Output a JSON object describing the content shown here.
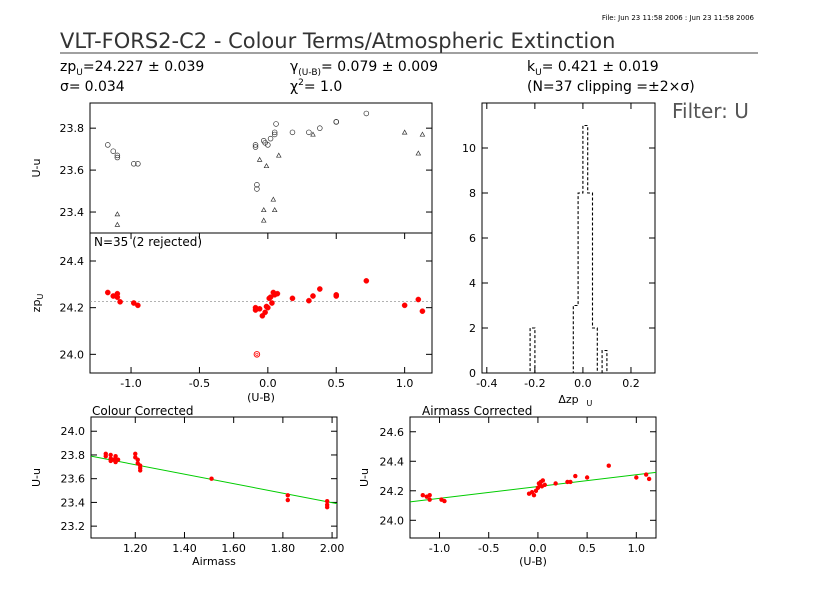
{
  "header": {
    "file_info": "File: Jun 23 11:58 2006 : Jun 23 11:58 2006",
    "title": "VLT-FORS2-C2 - Colour Terms/Atmospheric Extinction",
    "zp_label": "zp",
    "zp_sub": "U",
    "zp_value": "=24.227 ± 0.039",
    "sigma_label": "σ=",
    "sigma_value": "0.034",
    "gamma_label": "γ",
    "gamma_sub": "(U-B)",
    "gamma_value": "= 0.079 ± 0.009",
    "chi_label": "χ",
    "chi_sup": "2",
    "chi_value": "= 1.0",
    "k_label": "k",
    "k_sub": "U",
    "k_value": "= 0.421 ± 0.019",
    "clipping": "(N=37 clipping =±2×σ)",
    "filter": "Filter: U"
  },
  "colors": {
    "points": "#ff0000",
    "fit_line": "#00cc00",
    "axes": "#000000",
    "dotted": "#999999"
  },
  "chart_data": [
    {
      "id": "raw",
      "type": "scatter",
      "xlim": [
        -1.3,
        1.2
      ],
      "ylim": [
        23.3,
        23.92
      ],
      "ylabel": "U-u",
      "yticks": [
        23.4,
        23.6,
        23.8
      ],
      "series": [
        {
          "marker": "circle",
          "points": [
            [
              -1.17,
              23.72
            ],
            [
              -1.13,
              23.69
            ],
            [
              -1.1,
              23.67
            ],
            [
              -1.1,
              23.66
            ],
            [
              -0.98,
              23.63
            ],
            [
              -0.95,
              23.63
            ],
            [
              -0.09,
              23.72
            ],
            [
              -0.09,
              23.71
            ],
            [
              -0.08,
              23.53
            ],
            [
              -0.08,
              23.51
            ],
            [
              -0.03,
              23.74
            ],
            [
              -0.02,
              23.73
            ],
            [
              0.0,
              23.72
            ],
            [
              0.02,
              23.75
            ],
            [
              0.05,
              23.77
            ],
            [
              0.06,
              23.82
            ],
            [
              0.05,
              23.78
            ],
            [
              0.18,
              23.78
            ],
            [
              0.3,
              23.78
            ],
            [
              0.38,
              23.8
            ],
            [
              0.5,
              23.83
            ],
            [
              0.5,
              23.83
            ],
            [
              0.72,
              23.87
            ]
          ]
        },
        {
          "marker": "triangle",
          "points": [
            [
              -1.1,
              23.39
            ],
            [
              -1.1,
              23.34
            ],
            [
              -0.06,
              23.65
            ],
            [
              -0.03,
              23.41
            ],
            [
              -0.03,
              23.36
            ],
            [
              -0.01,
              23.62
            ],
            [
              0.04,
              23.46
            ],
            [
              0.05,
              23.41
            ],
            [
              0.08,
              23.67
            ],
            [
              0.33,
              23.77
            ],
            [
              1.0,
              23.78
            ],
            [
              1.1,
              23.68
            ],
            [
              1.13,
              23.77
            ]
          ]
        }
      ]
    },
    {
      "id": "zp",
      "type": "scatter",
      "annotation": "N=35 (2 rejected)",
      "xlim": [
        -1.3,
        1.2
      ],
      "ylim": [
        23.92,
        24.52
      ],
      "xlabel": "(U-B)",
      "ylabel": "zp",
      "ylabel_sub": "U",
      "xticks": [
        -1.0,
        -0.5,
        0.0,
        0.5,
        1.0
      ],
      "xticklabels": [
        "-1.0",
        "-0.5",
        "0.0",
        "0.5",
        "1.0"
      ],
      "yticks": [
        24.0,
        24.2,
        24.4
      ],
      "reference_line": 24.227,
      "points": [
        [
          -1.17,
          24.265
        ],
        [
          -1.13,
          24.25
        ],
        [
          -1.1,
          24.26
        ],
        [
          -1.1,
          24.245
        ],
        [
          -1.08,
          24.225
        ],
        [
          -0.98,
          24.22
        ],
        [
          -0.95,
          24.21
        ],
        [
          -0.09,
          24.19
        ],
        [
          -0.09,
          24.2
        ],
        [
          -0.06,
          24.195
        ],
        [
          -0.04,
          24.165
        ],
        [
          -0.02,
          24.18
        ],
        [
          -0.01,
          24.205
        ],
        [
          0.0,
          24.2
        ],
        [
          0.01,
          24.24
        ],
        [
          0.02,
          24.245
        ],
        [
          0.03,
          24.22
        ],
        [
          0.04,
          24.265
        ],
        [
          0.05,
          24.255
        ],
        [
          0.07,
          24.26
        ],
        [
          0.18,
          24.24
        ],
        [
          0.3,
          24.23
        ],
        [
          0.33,
          24.25
        ],
        [
          0.38,
          24.28
        ],
        [
          0.5,
          24.25
        ],
        [
          0.5,
          24.255
        ],
        [
          0.72,
          24.315
        ],
        [
          1.0,
          24.21
        ],
        [
          1.1,
          24.235
        ],
        [
          1.13,
          24.185
        ]
      ],
      "rejected": [
        [
          -0.08,
          24.0
        ]
      ]
    },
    {
      "id": "histogram",
      "type": "bar",
      "xlim": [
        -0.42,
        0.3
      ],
      "ylim": [
        0,
        12
      ],
      "xlabel": "Δzp",
      "xlabel_sub": "U",
      "xticks": [
        -0.4,
        -0.2,
        0.0,
        0.2
      ],
      "xticklabels": [
        "-0.4",
        "-0.2",
        "0.0",
        "0.2"
      ],
      "yticks": [
        0,
        2,
        4,
        6,
        8,
        10
      ],
      "bin_width": 0.02,
      "bins": [
        [
          -0.22,
          2
        ],
        [
          -0.04,
          3
        ],
        [
          -0.02,
          8
        ],
        [
          0.0,
          11
        ],
        [
          0.02,
          8
        ],
        [
          0.04,
          2
        ],
        [
          0.08,
          1
        ]
      ]
    },
    {
      "id": "colour-corrected",
      "type": "scatter",
      "title": "Colour Corrected",
      "xlim": [
        1.02,
        2.02
      ],
      "ylim": [
        23.1,
        24.12
      ],
      "xlabel": "Airmass",
      "ylabel": "U-u",
      "xticks": [
        1.2,
        1.4,
        1.6,
        1.8,
        2.0
      ],
      "xticklabels": [
        "1.20",
        "1.40",
        "1.60",
        "1.80",
        "2.00"
      ],
      "yticks": [
        23.2,
        23.4,
        23.6,
        23.8,
        24.0
      ],
      "fit_line": [
        [
          1.02,
          23.79
        ],
        [
          2.02,
          23.39
        ]
      ],
      "points": [
        [
          1.08,
          23.81
        ],
        [
          1.08,
          23.79
        ],
        [
          1.1,
          23.8
        ],
        [
          1.1,
          23.77
        ],
        [
          1.1,
          23.75
        ],
        [
          1.11,
          23.76
        ],
        [
          1.12,
          23.79
        ],
        [
          1.12,
          23.77
        ],
        [
          1.12,
          23.74
        ],
        [
          1.13,
          23.76
        ],
        [
          1.2,
          23.81
        ],
        [
          1.2,
          23.78
        ],
        [
          1.21,
          23.76
        ],
        [
          1.21,
          23.73
        ],
        [
          1.22,
          23.71
        ],
        [
          1.22,
          23.69
        ],
        [
          1.22,
          23.67
        ],
        [
          1.51,
          23.6
        ],
        [
          1.82,
          23.46
        ],
        [
          1.82,
          23.42
        ],
        [
          1.98,
          23.41
        ],
        [
          1.98,
          23.38
        ],
        [
          1.98,
          23.36
        ]
      ]
    },
    {
      "id": "airmass-corrected",
      "type": "scatter",
      "title": "Airmass Corrected",
      "xlim": [
        -1.3,
        1.2
      ],
      "ylim": [
        23.88,
        24.7
      ],
      "xlabel": "(U-B)",
      "ylabel": "U-u",
      "xticks": [
        -1.0,
        -0.5,
        0.0,
        0.5,
        1.0
      ],
      "xticklabels": [
        "-1.0",
        "-0.5",
        "0.0",
        "0.5",
        "1.0"
      ],
      "yticks": [
        24.0,
        24.2,
        24.4,
        24.6
      ],
      "fit_line": [
        [
          -1.3,
          24.125
        ],
        [
          1.2,
          24.325
        ]
      ],
      "points": [
        [
          -1.17,
          24.17
        ],
        [
          -1.13,
          24.16
        ],
        [
          -1.1,
          24.17
        ],
        [
          -1.1,
          24.14
        ],
        [
          -0.98,
          24.14
        ],
        [
          -0.95,
          24.13
        ],
        [
          -0.09,
          24.18
        ],
        [
          -0.06,
          24.19
        ],
        [
          -0.04,
          24.17
        ],
        [
          -0.02,
          24.2
        ],
        [
          0.0,
          24.22
        ],
        [
          0.01,
          24.25
        ],
        [
          0.02,
          24.24
        ],
        [
          0.03,
          24.26
        ],
        [
          0.04,
          24.23
        ],
        [
          0.05,
          24.27
        ],
        [
          0.07,
          24.24
        ],
        [
          0.18,
          24.25
        ],
        [
          0.3,
          24.26
        ],
        [
          0.33,
          24.26
        ],
        [
          0.38,
          24.3
        ],
        [
          0.5,
          24.29
        ],
        [
          0.72,
          24.37
        ],
        [
          1.0,
          24.29
        ],
        [
          1.1,
          24.31
        ],
        [
          1.13,
          24.28
        ]
      ]
    }
  ]
}
